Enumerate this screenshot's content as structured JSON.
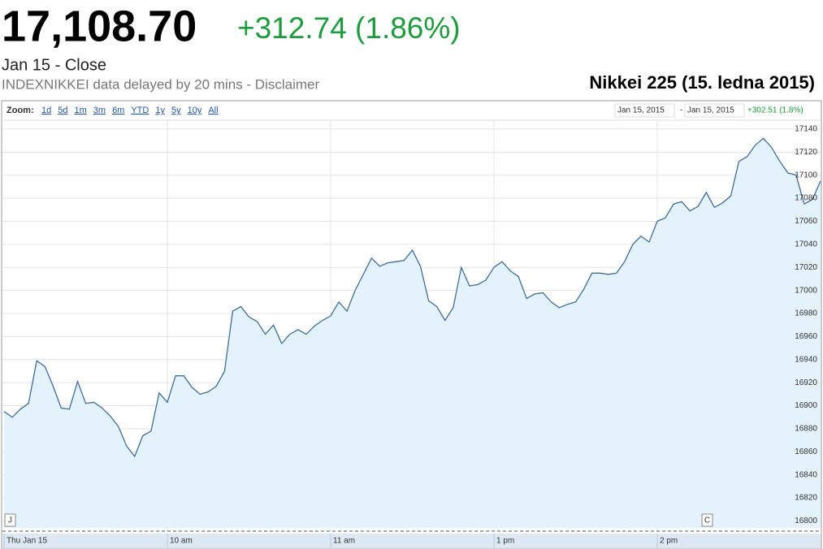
{
  "header": {
    "price": "17,108.70",
    "change": "+312.74 (1.86%)",
    "close_label": "Jan 15 - Close",
    "source_note": "INDEXNIKKEI data delayed by 20 mins - Disclaimer"
  },
  "zoom": {
    "label": "Zoom:",
    "options": [
      "1d",
      "5d",
      "1m",
      "3m",
      "6m",
      "YTD",
      "1y",
      "5y",
      "10y",
      "All"
    ]
  },
  "range": {
    "start": "Jan 15, 2015",
    "separator": "-",
    "end": "Jan 15, 2015",
    "change": "+302.51 (1.8%)"
  },
  "markers": [
    "J",
    "C"
  ],
  "chart_data": {
    "type": "area",
    "title": "Nikkei 225 (15. ledna 2015)",
    "categories": [
      "Thu Jan 15",
      null,
      null,
      null,
      null,
      null,
      null,
      null,
      null,
      null,
      null,
      null,
      null,
      null,
      null,
      null,
      null,
      null,
      null,
      null,
      "10 am",
      null,
      null,
      null,
      null,
      null,
      null,
      null,
      null,
      null,
      null,
      null,
      null,
      null,
      null,
      null,
      null,
      null,
      null,
      null,
      "11 am",
      null,
      null,
      null,
      null,
      null,
      null,
      null,
      null,
      null,
      null,
      null,
      null,
      null,
      null,
      null,
      null,
      null,
      null,
      null,
      "1 pm",
      null,
      null,
      null,
      null,
      null,
      null,
      null,
      null,
      null,
      null,
      null,
      null,
      null,
      null,
      null,
      null,
      null,
      null,
      null,
      "2 pm",
      null,
      null,
      null,
      null,
      null,
      null,
      null,
      null,
      null,
      null,
      null,
      null,
      null,
      null,
      null,
      null,
      null,
      null,
      null,
      null
    ],
    "values": [
      16895,
      16890,
      16897,
      16902,
      16939,
      16934,
      16917,
      16898,
      16897,
      16921,
      16902,
      16903,
      16898,
      16891,
      16882,
      16865,
      16856,
      16874,
      16878,
      16911,
      16903,
      16926,
      16926,
      16916,
      16910,
      16912,
      16917,
      16930,
      16982,
      16986,
      16977,
      16973,
      16962,
      16970,
      16954,
      16962,
      16966,
      16962,
      16969,
      16974,
      16978,
      16990,
      16982,
      17000,
      17014,
      17028,
      17021,
      17024,
      17025,
      17026,
      17035,
      17021,
      16991,
      16986,
      16974,
      16985,
      17020,
      17004,
      17005,
      17009,
      17020,
      17025,
      17017,
      17012,
      16993,
      16997,
      16998,
      16990,
      16985,
      16988,
      16990,
      17001,
      17015,
      17015,
      17014,
      17015,
      17025,
      17040,
      17047,
      17042,
      17060,
      17063,
      17075,
      17077,
      17069,
      17073,
      17085,
      17072,
      17076,
      17082,
      17112,
      17116,
      17126,
      17132,
      17124,
      17112,
      17102,
      17100,
      17075,
      17079,
      17095
    ],
    "color": "#3f6e9c",
    "fill": "#e4f2fb",
    "ylim": [
      16794,
      17147
    ],
    "yticks": [
      16800,
      16820,
      16840,
      16860,
      16880,
      16900,
      16920,
      16940,
      16960,
      16980,
      17000,
      17020,
      17040,
      17060,
      17080,
      17100,
      17120,
      17140
    ],
    "grid": true
  }
}
